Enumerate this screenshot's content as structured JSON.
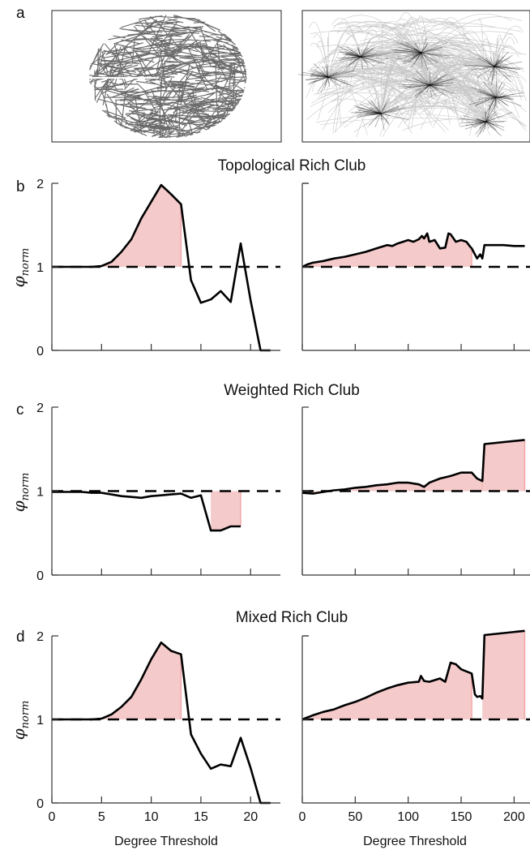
{
  "panel_letters": [
    "a",
    "b",
    "c",
    "d"
  ],
  "network_images": [
    {
      "description_icon": "brain-network-icon"
    },
    {
      "description_icon": "airline-network-map-icon"
    }
  ],
  "colors": {
    "line": "#000000",
    "fill": "#f4caca",
    "fill_edge": "#f2a9a9",
    "brain_net": "#5a5a5a"
  },
  "ylabel": {
    "base": "φ",
    "sub": "norm"
  },
  "xlabel": "Degree Threshold",
  "chart_data": [
    {
      "type": "area",
      "panel": "b",
      "title": "Topological Rich Club",
      "xlabel": "",
      "ylabel": "φnorm",
      "xlim": [
        0,
        23
      ],
      "ylim": [
        0,
        2
      ],
      "yticks": [
        0,
        1,
        2
      ],
      "xticks": [
        0,
        5,
        10,
        15,
        20
      ],
      "reference_line": 1,
      "x": [
        0,
        1,
        2,
        3,
        4,
        5,
        6,
        7,
        8,
        9,
        10,
        11,
        12,
        13,
        14,
        15,
        16,
        17,
        18,
        19,
        20,
        21,
        22
      ],
      "values": [
        1.0,
        1.0,
        1.0,
        1.0,
        1.0,
        1.01,
        1.06,
        1.18,
        1.33,
        1.58,
        1.78,
        1.98,
        1.87,
        1.75,
        0.84,
        0.57,
        0.61,
        0.71,
        0.58,
        1.28,
        0.6,
        0,
        0
      ],
      "shade_ranges": [
        [
          5,
          13
        ]
      ]
    },
    {
      "type": "area",
      "panel": "b",
      "title": "",
      "xlabel": "",
      "ylabel": "",
      "xlim": [
        0,
        215
      ],
      "ylim": [
        0,
        2
      ],
      "yticks": [
        1,
        2
      ],
      "xticks": [
        0,
        50,
        100,
        150,
        200
      ],
      "reference_line": 1,
      "x": [
        0,
        5,
        10,
        20,
        30,
        40,
        50,
        60,
        70,
        80,
        85,
        90,
        95,
        100,
        105,
        110,
        113,
        115,
        118,
        120,
        125,
        130,
        135,
        138,
        140,
        145,
        150,
        155,
        158,
        160,
        163,
        165,
        168,
        170,
        172,
        175,
        180,
        190,
        200,
        210
      ],
      "values": [
        1.0,
        1.03,
        1.05,
        1.07,
        1.1,
        1.12,
        1.15,
        1.18,
        1.22,
        1.26,
        1.25,
        1.28,
        1.3,
        1.32,
        1.3,
        1.33,
        1.37,
        1.34,
        1.4,
        1.3,
        1.32,
        1.22,
        1.23,
        1.4,
        1.39,
        1.3,
        1.32,
        1.3,
        1.25,
        1.22,
        1.15,
        1.1,
        1.15,
        1.1,
        1.26,
        1.26,
        1.26,
        1.26,
        1.25,
        1.25
      ],
      "shade_ranges": [
        [
          0,
          160
        ]
      ]
    },
    {
      "type": "area",
      "panel": "c",
      "title": "Weighted Rich Club",
      "xlabel": "",
      "ylabel": "φnorm",
      "xlim": [
        0,
        23
      ],
      "ylim": [
        0,
        2
      ],
      "yticks": [
        0,
        1,
        2
      ],
      "xticks": [
        0,
        5,
        10,
        15,
        20
      ],
      "reference_line": 1,
      "x": [
        0,
        1,
        2,
        3,
        4,
        5,
        6,
        7,
        8,
        9,
        10,
        11,
        12,
        13,
        14,
        15,
        16,
        17,
        18,
        19
      ],
      "values": [
        0.99,
        0.99,
        0.99,
        0.99,
        0.98,
        0.98,
        0.96,
        0.94,
        0.93,
        0.92,
        0.94,
        0.95,
        0.96,
        0.97,
        0.92,
        0.95,
        0.53,
        0.53,
        0.58,
        0.58
      ],
      "shade_ranges": [
        [
          16,
          19
        ]
      ]
    },
    {
      "type": "area",
      "panel": "c",
      "title": "",
      "xlabel": "",
      "ylabel": "",
      "xlim": [
        0,
        215
      ],
      "ylim": [
        0,
        2
      ],
      "yticks": [],
      "xticks": [
        0,
        50,
        100,
        150,
        200
      ],
      "reference_line": 1,
      "x": [
        0,
        10,
        20,
        30,
        40,
        50,
        60,
        70,
        80,
        90,
        100,
        110,
        115,
        120,
        130,
        140,
        150,
        160,
        165,
        170,
        172,
        210
      ],
      "values": [
        0.98,
        0.97,
        0.99,
        1.01,
        1.02,
        1.04,
        1.05,
        1.07,
        1.08,
        1.1,
        1.1,
        1.08,
        1.05,
        1.1,
        1.15,
        1.18,
        1.22,
        1.22,
        1.15,
        1.12,
        1.56,
        1.61
      ],
      "shade_ranges": [
        [
          0,
          170
        ],
        [
          170,
          210
        ]
      ]
    },
    {
      "type": "area",
      "panel": "d",
      "title": "Mixed Rich Club",
      "xlabel": "Degree Threshold",
      "ylabel": "φnorm",
      "xlim": [
        0,
        23
      ],
      "ylim": [
        0,
        2
      ],
      "yticks": [
        0,
        1,
        2
      ],
      "xticks": [
        0,
        5,
        10,
        15,
        20
      ],
      "reference_line": 1,
      "x": [
        0,
        1,
        2,
        3,
        4,
        5,
        6,
        7,
        8,
        9,
        10,
        11,
        12,
        13,
        14,
        15,
        16,
        17,
        18,
        19,
        20,
        21,
        22
      ],
      "values": [
        1.0,
        1.0,
        1.0,
        1.0,
        1.0,
        1.01,
        1.06,
        1.15,
        1.27,
        1.48,
        1.72,
        1.92,
        1.82,
        1.78,
        0.82,
        0.59,
        0.41,
        0.46,
        0.44,
        0.78,
        0.42,
        0,
        0
      ],
      "shade_ranges": [
        [
          5,
          13
        ]
      ]
    },
    {
      "type": "area",
      "panel": "d",
      "title": "",
      "xlabel": "Degree Threshold",
      "ylabel": "",
      "xlim": [
        0,
        215
      ],
      "ylim": [
        0,
        2
      ],
      "yticks": [
        1,
        2
      ],
      "xticks": [
        0,
        50,
        100,
        150,
        200
      ],
      "reference_line": 1,
      "x": [
        0,
        10,
        20,
        30,
        40,
        50,
        60,
        70,
        80,
        90,
        100,
        110,
        112,
        115,
        120,
        130,
        135,
        140,
        145,
        150,
        160,
        163,
        165,
        168,
        170,
        172,
        210
      ],
      "values": [
        1.0,
        1.05,
        1.09,
        1.12,
        1.17,
        1.21,
        1.26,
        1.32,
        1.37,
        1.41,
        1.44,
        1.45,
        1.52,
        1.46,
        1.45,
        1.49,
        1.45,
        1.68,
        1.66,
        1.6,
        1.55,
        1.3,
        1.27,
        1.28,
        1.25,
        2.01,
        2.06
      ],
      "shade_ranges": [
        [
          0,
          160
        ],
        [
          170,
          210
        ]
      ]
    }
  ]
}
